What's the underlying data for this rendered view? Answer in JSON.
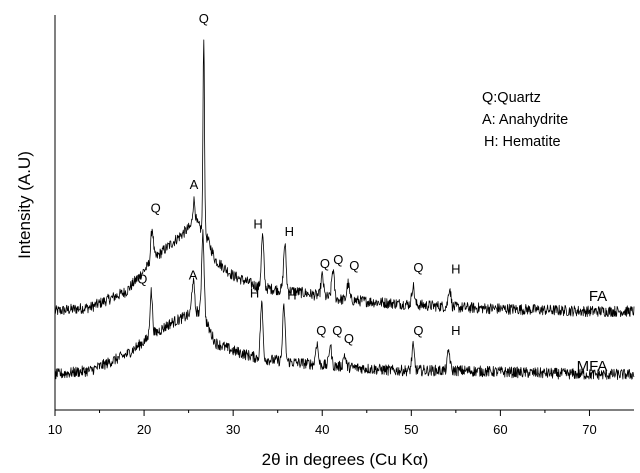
{
  "chart_data": {
    "type": "line",
    "title": "",
    "xlabel": "2θ in degrees (Cu Kα)",
    "ylabel": "Intensity (A.U)",
    "xlim": [
      10,
      75
    ],
    "ylim": [
      0,
      1
    ],
    "x_ticks": [
      "10",
      "20",
      "30",
      "40",
      "50",
      "60",
      "70"
    ],
    "y_ticks_shown": false,
    "grid": false,
    "legend": {
      "placement": "top-right",
      "entries": [
        "Q:Quartz",
        "A: Anahydrite",
        "H: Hematite"
      ]
    },
    "series": [
      {
        "name": "FA",
        "baseline": [
          [
            10,
            0.25
          ],
          [
            14,
            0.26
          ],
          [
            18,
            0.3
          ],
          [
            21,
            0.38
          ],
          [
            23,
            0.42
          ],
          [
            25,
            0.46
          ],
          [
            26,
            0.47
          ],
          [
            27,
            0.44
          ],
          [
            28,
            0.38
          ],
          [
            30,
            0.34
          ],
          [
            33,
            0.31
          ],
          [
            37,
            0.3
          ],
          [
            42,
            0.28
          ],
          [
            48,
            0.27
          ],
          [
            55,
            0.26
          ],
          [
            62,
            0.255
          ],
          [
            70,
            0.25
          ],
          [
            75,
            0.25
          ]
        ],
        "peaks": [
          {
            "x": 20.9,
            "y": 0.46,
            "label": "Q"
          },
          {
            "x": 25.6,
            "y": 0.53,
            "label": "A"
          },
          {
            "x": 26.7,
            "y": 0.95,
            "label": "Q"
          },
          {
            "x": 33.3,
            "y": 0.44,
            "label": "H"
          },
          {
            "x": 35.8,
            "y": 0.42,
            "label": "H"
          },
          {
            "x": 40.0,
            "y": 0.34,
            "label": "Q"
          },
          {
            "x": 41.2,
            "y": 0.355,
            "label": "Q"
          },
          {
            "x": 42.9,
            "y": 0.32,
            "label": "Q"
          },
          {
            "x": 50.2,
            "y": 0.315,
            "label": "Q"
          },
          {
            "x": 54.3,
            "y": 0.31,
            "label": "H"
          }
        ]
      },
      {
        "name": "MFA",
        "baseline": [
          [
            10,
            0.09
          ],
          [
            14,
            0.1
          ],
          [
            18,
            0.14
          ],
          [
            21,
            0.19
          ],
          [
            23,
            0.22
          ],
          [
            25,
            0.24
          ],
          [
            26,
            0.25
          ],
          [
            27,
            0.22
          ],
          [
            28,
            0.17
          ],
          [
            30,
            0.15
          ],
          [
            33,
            0.13
          ],
          [
            37,
            0.12
          ],
          [
            42,
            0.11
          ],
          [
            48,
            0.1
          ],
          [
            55,
            0.1
          ],
          [
            62,
            0.095
          ],
          [
            70,
            0.09
          ],
          [
            75,
            0.09
          ]
        ],
        "peaks": [
          {
            "x": 20.8,
            "y": 0.3,
            "label": "Q"
          },
          {
            "x": 25.5,
            "y": 0.33,
            "label": "A"
          },
          {
            "x": 26.6,
            "y": 0.45,
            "label": "Q"
          },
          {
            "x": 33.2,
            "y": 0.27,
            "label": "H"
          },
          {
            "x": 35.7,
            "y": 0.26,
            "label": "H"
          },
          {
            "x": 39.4,
            "y": 0.17,
            "label": "Q"
          },
          {
            "x": 40.9,
            "y": 0.165,
            "label": "Q"
          },
          {
            "x": 42.5,
            "y": 0.14,
            "label": "Q"
          },
          {
            "x": 50.2,
            "y": 0.16,
            "label": "Q"
          },
          {
            "x": 54.2,
            "y": 0.15,
            "label": "H"
          }
        ]
      }
    ],
    "peak_annotations": [
      {
        "text": "Q",
        "x": 26.7,
        "y": 0.98
      },
      {
        "text": "Q",
        "x": 21.3,
        "y": 0.5
      },
      {
        "text": "A",
        "x": 25.6,
        "y": 0.56
      },
      {
        "text": "H",
        "x": 32.8,
        "y": 0.46
      },
      {
        "text": "H",
        "x": 36.3,
        "y": 0.44
      },
      {
        "text": "Q",
        "x": 40.3,
        "y": 0.36
      },
      {
        "text": "Q",
        "x": 41.8,
        "y": 0.37
      },
      {
        "text": "Q",
        "x": 43.6,
        "y": 0.355
      },
      {
        "text": "Q",
        "x": 50.8,
        "y": 0.35
      },
      {
        "text": "H",
        "x": 55.0,
        "y": 0.345
      },
      {
        "text": "Q",
        "x": 19.8,
        "y": 0.32
      },
      {
        "text": "A",
        "x": 25.5,
        "y": 0.33
      },
      {
        "text": "H",
        "x": 32.4,
        "y": 0.285
      },
      {
        "text": "H",
        "x": 36.6,
        "y": 0.28
      },
      {
        "text": "Q",
        "x": 39.9,
        "y": 0.19
      },
      {
        "text": "Q",
        "x": 41.7,
        "y": 0.19
      },
      {
        "text": "Q",
        "x": 43.0,
        "y": 0.17
      },
      {
        "text": "Q",
        "x": 50.8,
        "y": 0.19
      },
      {
        "text": "H",
        "x": 55.0,
        "y": 0.19
      }
    ]
  }
}
